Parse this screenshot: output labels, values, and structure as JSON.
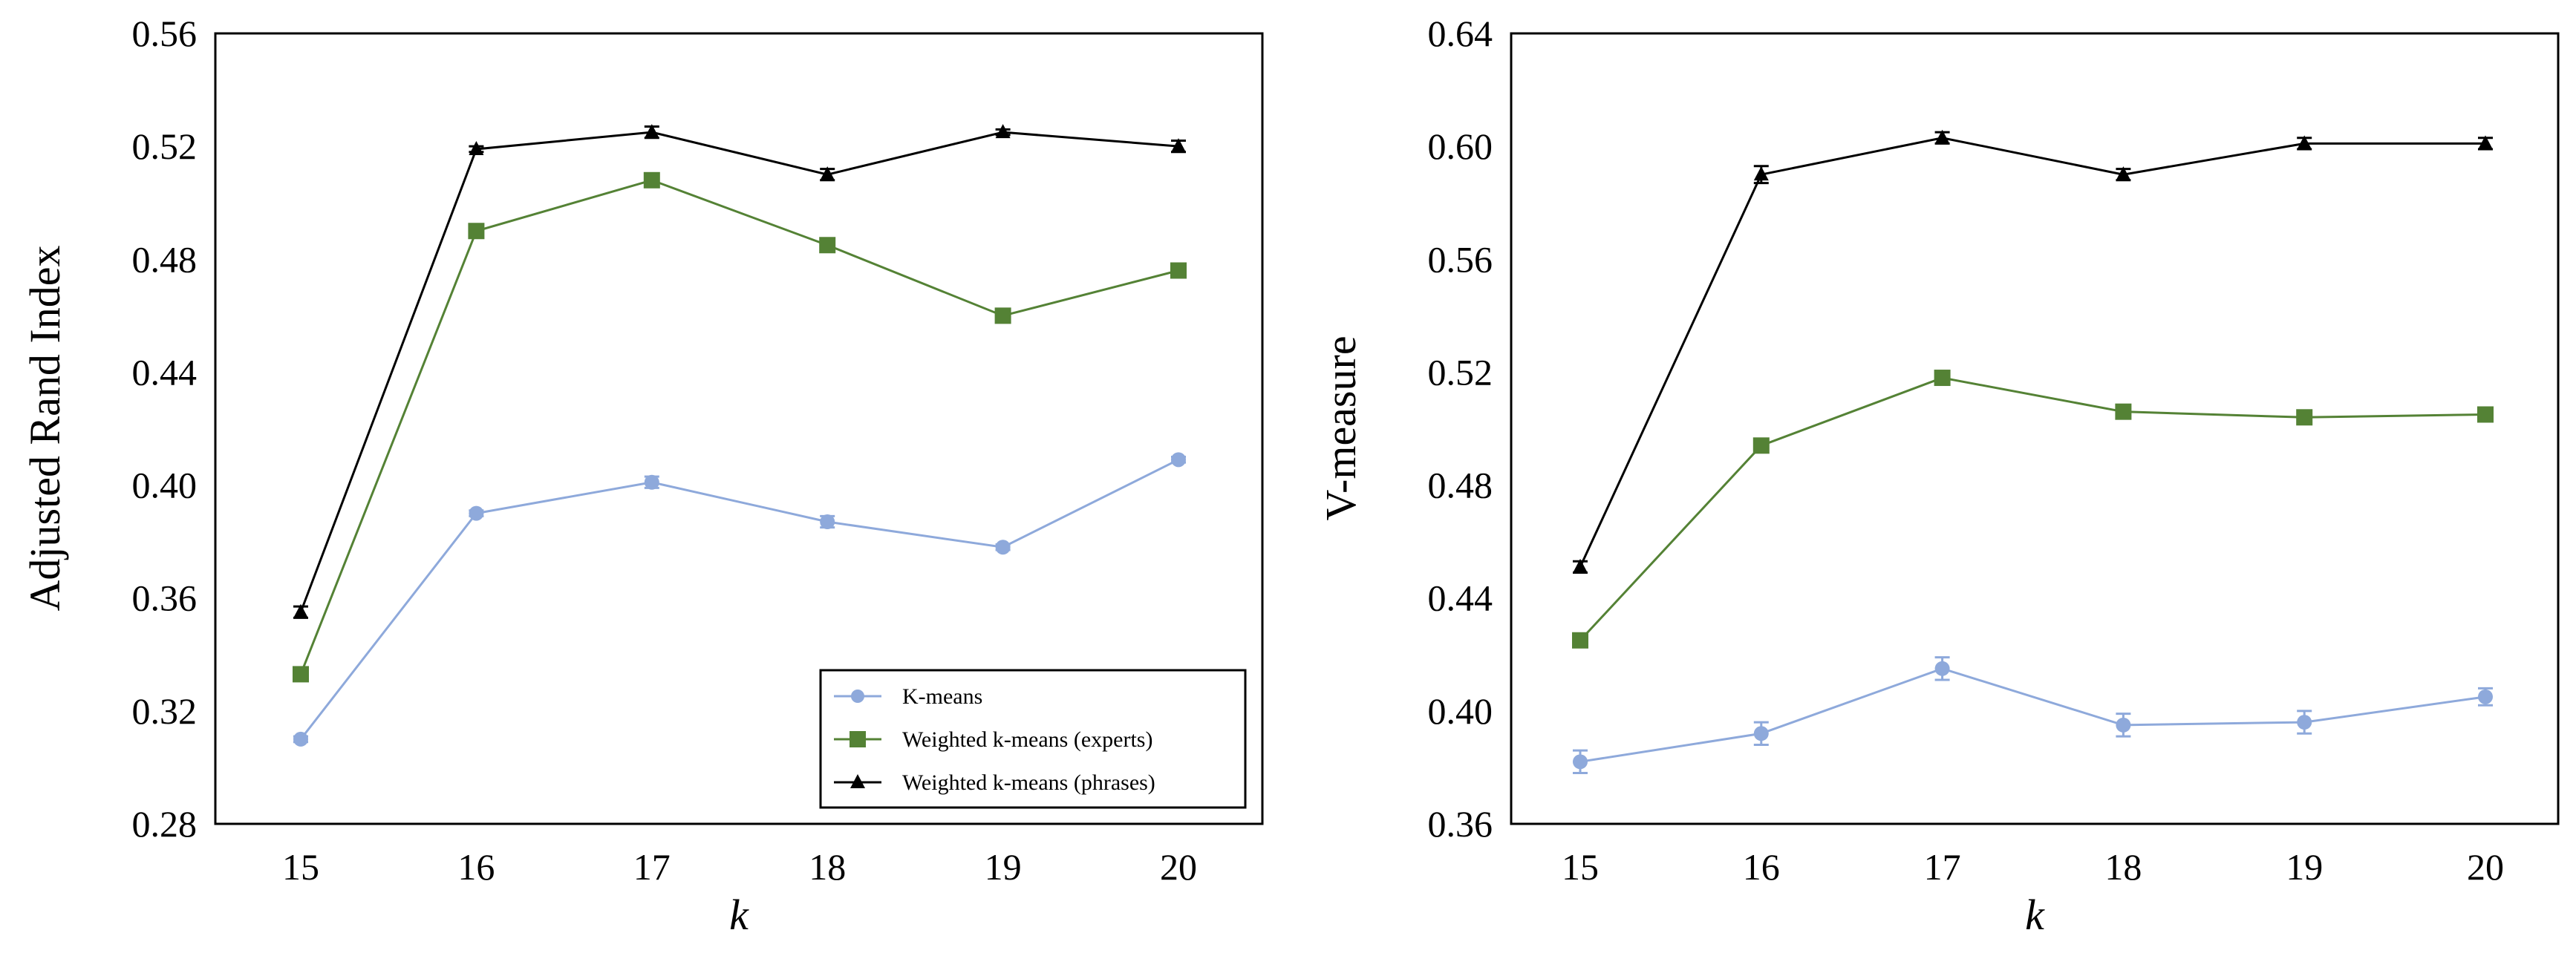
{
  "charts": [
    {
      "id": "ari",
      "chart_data": {
        "type": "line",
        "title": "",
        "xlabel": "k",
        "ylabel": "Adjusted Rand Index",
        "x": [
          15,
          16,
          17,
          18,
          19,
          20
        ],
        "x_ticks": [
          "15",
          "16",
          "17",
          "18",
          "19",
          "20"
        ],
        "ylim": [
          0.28,
          0.56
        ],
        "y_ticks": [
          "0.28",
          "0.32",
          "0.36",
          "0.40",
          "0.44",
          "0.48",
          "0.52",
          "0.56"
        ],
        "grid": false,
        "legend": "bottom-right",
        "series": [
          {
            "name": "K-means",
            "color": "#8ea9db",
            "marker": "circle",
            "values": [
              0.31,
              0.39,
              0.401,
              0.387,
              0.378,
              0.409
            ],
            "errors": [
              0.001,
              0.001,
              0.002,
              0.002,
              0.001,
              0.001
            ]
          },
          {
            "name": "Weighted k-means (experts)",
            "color": "#548235",
            "marker": "square",
            "values": [
              0.333,
              0.49,
              0.508,
              0.485,
              0.46,
              0.476
            ],
            "errors": [
              0.002,
              0.001,
              0.001,
              0.001,
              0.001,
              0.001
            ]
          },
          {
            "name": "Weighted k-means (phrases)",
            "color": "#000000",
            "marker": "triangle",
            "values": [
              0.355,
              0.519,
              0.525,
              0.51,
              0.525,
              0.52
            ],
            "errors": [
              0.002,
              0.001,
              0.002,
              0.002,
              0.001,
              0.002
            ]
          }
        ]
      }
    },
    {
      "id": "vmeasure",
      "chart_data": {
        "type": "line",
        "title": "",
        "xlabel": "k",
        "ylabel": "V-measure",
        "x": [
          15,
          16,
          17,
          18,
          19,
          20
        ],
        "x_ticks": [
          "15",
          "16",
          "17",
          "18",
          "19",
          "20"
        ],
        "ylim": [
          0.36,
          0.64
        ],
        "y_ticks": [
          "0.36",
          "0.40",
          "0.44",
          "0.48",
          "0.52",
          "0.56",
          "0.60",
          "0.64"
        ],
        "grid": false,
        "legend": "none",
        "series": [
          {
            "name": "K-means",
            "color": "#8ea9db",
            "marker": "circle",
            "values": [
              0.382,
              0.392,
              0.415,
              0.395,
              0.396,
              0.405
            ],
            "errors": [
              0.004,
              0.004,
              0.004,
              0.004,
              0.004,
              0.003
            ]
          },
          {
            "name": "Weighted k-means (experts)",
            "color": "#548235",
            "marker": "square",
            "values": [
              0.425,
              0.494,
              0.518,
              0.506,
              0.504,
              0.505
            ],
            "errors": [
              0.002,
              0.002,
              0.002,
              0.001,
              0.001,
              0.001
            ]
          },
          {
            "name": "Weighted k-means (phrases)",
            "color": "#000000",
            "marker": "triangle",
            "values": [
              0.451,
              0.59,
              0.603,
              0.59,
              0.601,
              0.601
            ],
            "errors": [
              0.002,
              0.003,
              0.002,
              0.002,
              0.002,
              0.002
            ]
          }
        ]
      }
    }
  ]
}
